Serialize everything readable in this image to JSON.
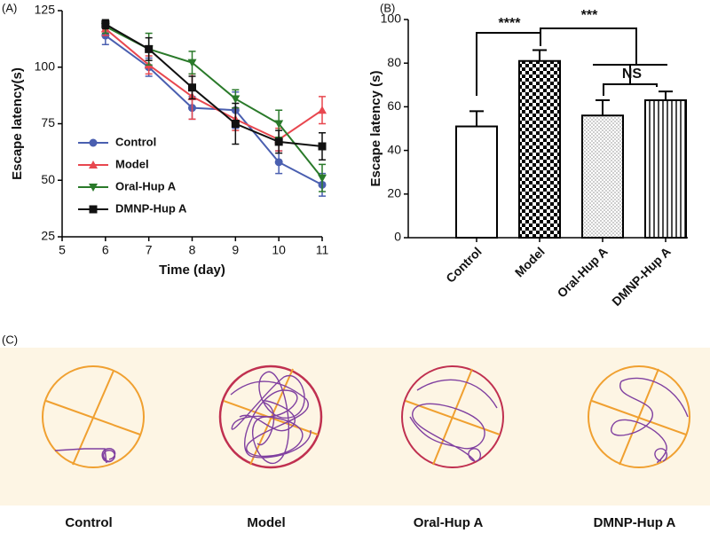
{
  "chart_data": [
    {
      "type": "line",
      "panel_label": "(A)",
      "x_label": "Time (day)",
      "y_label": "Escape latency(s)",
      "x": [
        6,
        7,
        8,
        9,
        10,
        11
      ],
      "xlim": [
        5,
        11
      ],
      "xticks": [
        5,
        6,
        7,
        8,
        9,
        10,
        11
      ],
      "ylim": [
        25,
        125
      ],
      "yticks": [
        25,
        50,
        75,
        100,
        125
      ],
      "legend": "lower left",
      "series": [
        {
          "name": "Control",
          "color": "#4a5fb0",
          "marker": "circle",
          "values": [
            114,
            100,
            82,
            81,
            58,
            48
          ],
          "errors": [
            4,
            4,
            5,
            8,
            5,
            5
          ]
        },
        {
          "name": "Model",
          "color": "#e8474f",
          "marker": "triangle-up",
          "values": [
            117,
            101,
            87,
            77,
            68,
            81
          ],
          "errors": [
            3,
            4,
            10,
            5,
            5,
            6
          ]
        },
        {
          "name": "Oral-Hup A",
          "color": "#2a7a2a",
          "marker": "triangle-down",
          "values": [
            118,
            108,
            102,
            86,
            75,
            51
          ],
          "errors": [
            3,
            7,
            5,
            4,
            6,
            6
          ]
        },
        {
          "name": "DMNP-Hup A",
          "color": "#111111",
          "marker": "square",
          "values": [
            119,
            108,
            91,
            75,
            67,
            65
          ],
          "errors": [
            2,
            5,
            5,
            9,
            5,
            6
          ]
        }
      ]
    },
    {
      "type": "bar",
      "panel_label": "(B)",
      "y_label": "Escape latency (s)",
      "categories": [
        "Control",
        "Model",
        "Oral-Hup A",
        "DMNP-Hup A"
      ],
      "values": [
        51,
        81,
        56,
        63
      ],
      "errors": [
        7,
        5,
        7,
        4
      ],
      "color": "#ffffff",
      "edge_color": "#000000",
      "patterns": [
        "none",
        "checker",
        "dots",
        "vlines"
      ],
      "ylim": [
        0,
        100
      ],
      "yticks": [
        0,
        20,
        40,
        60,
        80,
        100
      ],
      "annotations": [
        "****",
        "***",
        "NS"
      ]
    }
  ],
  "trajectories": {
    "panel_label": "(C)",
    "labels": [
      "Control",
      "Model",
      "Oral-Hup A",
      "DMNP-Hup A"
    ]
  }
}
